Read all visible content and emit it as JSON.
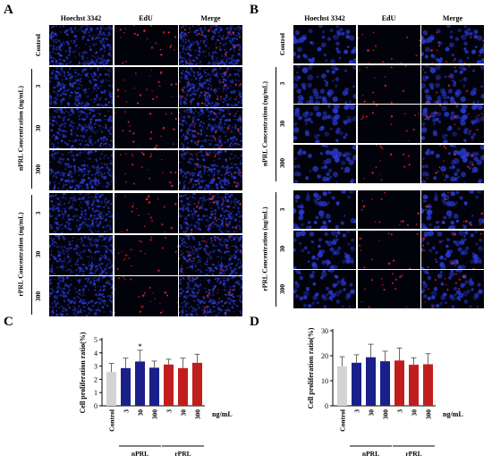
{
  "panels": {
    "A": {
      "letter": "A",
      "columns": [
        "Hoechst 3342",
        "EdU",
        "Merge"
      ],
      "rows": [
        "Control",
        "3",
        "30",
        "300",
        "3",
        "30",
        "300"
      ],
      "groups": [
        "nPRL Concentration (ng/mL)",
        "rPRL Concentration (ng/mL)"
      ]
    },
    "B": {
      "letter": "B",
      "columns": [
        "Hoechst 3342",
        "EdU",
        "Merge"
      ],
      "rows": [
        "Control",
        "3",
        "30",
        "300",
        "3",
        "30",
        "300"
      ],
      "groups": [
        "nPRL Concentration (ng/mL)",
        "rPRL Concentration (ng/mL)"
      ]
    }
  },
  "colors": {
    "control": "#d3d3d3",
    "nPRL": "#1b1f8a",
    "rPRL": "#c21d1d",
    "hoechst": "#2a3bd6",
    "edu": "#e8242c"
  },
  "chart_data": [
    {
      "panel": "C",
      "type": "bar",
      "categories": [
        "Control",
        "3",
        "30",
        "300",
        "3",
        "30",
        "300"
      ],
      "groups": [
        {
          "name": "nPRL",
          "from": 1,
          "to": 3
        },
        {
          "name": "rPRL",
          "from": 4,
          "to": 6
        }
      ],
      "unit_label": "ng/mL",
      "values": [
        2.55,
        2.85,
        3.35,
        2.88,
        3.12,
        2.85,
        3.25
      ],
      "errors": [
        0.65,
        0.75,
        0.85,
        0.5,
        0.4,
        0.75,
        0.65
      ],
      "bar_colors": [
        "control",
        "nPRL",
        "nPRL",
        "nPRL",
        "rPRL",
        "rPRL",
        "rPRL"
      ],
      "significance": [
        "",
        "",
        "*",
        "",
        "",
        "",
        ""
      ],
      "ylabel": "Cell proliferation ratio(%)",
      "ylim": [
        0,
        5
      ],
      "yticks": [
        0,
        1,
        2,
        3,
        4,
        5
      ]
    },
    {
      "panel": "D",
      "type": "bar",
      "categories": [
        "Control",
        "3",
        "30",
        "300",
        "3",
        "30",
        "300"
      ],
      "groups": [
        {
          "name": "nPRL",
          "from": 1,
          "to": 3
        },
        {
          "name": "rPRL",
          "from": 4,
          "to": 6
        }
      ],
      "unit_label": "ng/mL",
      "values": [
        15.8,
        17.2,
        19.4,
        17.8,
        18.1,
        16.4,
        16.6
      ],
      "errors": [
        3.8,
        3.2,
        5.2,
        4.0,
        5.0,
        2.8,
        4.2
      ],
      "bar_colors": [
        "control",
        "nPRL",
        "nPRL",
        "nPRL",
        "rPRL",
        "rPRL",
        "rPRL"
      ],
      "significance": [
        "",
        "",
        "",
        "",
        "",
        "",
        ""
      ],
      "ylabel": "Cell proliferation ratio(%)",
      "ylim": [
        0,
        30
      ],
      "yticks": [
        0,
        10,
        20,
        30
      ]
    }
  ]
}
